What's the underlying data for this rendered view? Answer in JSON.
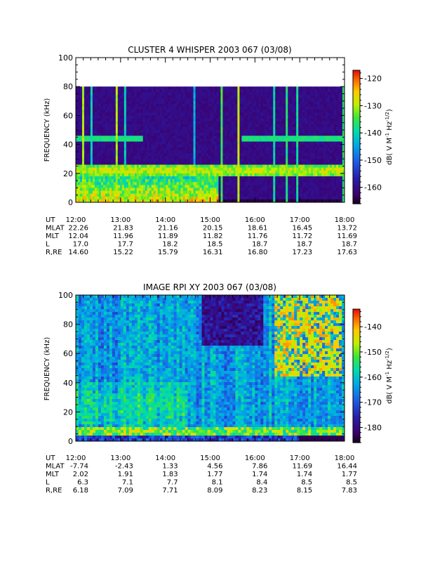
{
  "chart_data": [
    {
      "type": "heatmap",
      "title": "CLUSTER 4 WHISPER 2003 067 (03/08)",
      "ylabel": "FREQUENCY (kHz)",
      "ylim": [
        0,
        100
      ],
      "yticks": [
        "0",
        "20",
        "40",
        "60",
        "80",
        "100"
      ],
      "data_top_khz": 80,
      "xlim": [
        "12:00",
        "18:00"
      ],
      "colorbar": {
        "label": "dB( V M",
        "label_exp1": "-1",
        "label_mid": " Hz",
        "label_exp2": "-1/2",
        "label_end": ")",
        "range": [
          -166,
          -117
        ],
        "ticks": [
          "-120",
          "-130",
          "-140",
          "-150",
          "-160"
        ]
      },
      "features": {
        "background_db": -160,
        "band_22khz_db": -128,
        "band_44khz_db": -137,
        "lowfreq_region_end": "15:10",
        "vertical_spikes": [
          "12:10",
          "12:22",
          "12:55",
          "13:07",
          "14:40",
          "15:15",
          "15:38",
          "16:25",
          "16:42",
          "16:56",
          "17:58"
        ]
      },
      "orbit_rows": [
        {
          "label": "UT",
          "values": [
            "12:00",
            "13:00",
            "14:00",
            "15:00",
            "16:00",
            "17:00",
            "18:00"
          ]
        },
        {
          "label": "MLAT",
          "values": [
            "22.26",
            "21.83",
            "21.16",
            "20.15",
            "18.61",
            "16.45",
            "13.72"
          ]
        },
        {
          "label": "MLT",
          "values": [
            "12.04",
            "11.96",
            "11.89",
            "11.82",
            "11.76",
            "11.72",
            "11.69"
          ]
        },
        {
          "label": "L",
          "values": [
            "17.0",
            "17.7",
            "18.2",
            "18.5",
            "18.7",
            "18.7",
            "18.7"
          ]
        },
        {
          "label": "R,RE",
          "values": [
            "14.60",
            "15.22",
            "15.79",
            "16.31",
            "16.80",
            "17.23",
            "17.63"
          ]
        }
      ]
    },
    {
      "type": "heatmap",
      "title": "IMAGE RPI XY 2003 067 (03/08)",
      "ylabel": "FREQUENCY (kHz)",
      "ylim": [
        0,
        100
      ],
      "yticks": [
        "0",
        "20",
        "40",
        "60",
        "80",
        "100"
      ],
      "data_top_khz": 100,
      "xlim": [
        "12:00",
        "18:00"
      ],
      "colorbar": {
        "label": "dB( V M",
        "label_exp1": "-1",
        "label_mid": " Hz",
        "label_exp2": "-1/2",
        "label_end": ")",
        "range": [
          -186,
          -133
        ],
        "ticks": [
          "-140",
          "-150",
          "-160",
          "-170",
          "-180"
        ]
      },
      "features": {
        "background_db": -163,
        "dark_region": [
          "14:50",
          "16:10",
          65,
          100
        ],
        "intense_region": [
          "16:25",
          "17:55",
          45,
          100
        ]
      },
      "orbit_rows": [
        {
          "label": "UT",
          "values": [
            "12:00",
            "13:00",
            "14:00",
            "15:00",
            "16:00",
            "17:00",
            "18:00"
          ]
        },
        {
          "label": "MLAT",
          "values": [
            "-7.74",
            "-2.43",
            "1.33",
            "4.56",
            "7.86",
            "11.69",
            "16.44"
          ]
        },
        {
          "label": "MLT",
          "values": [
            "2.02",
            "1.91",
            "1.83",
            "1.77",
            "1.74",
            "1.74",
            "1.77"
          ]
        },
        {
          "label": "L",
          "values": [
            "6.3",
            "7.1",
            "7.7",
            "8.1",
            "8.4",
            "8.5",
            "8.5"
          ]
        },
        {
          "label": "R,RE",
          "values": [
            "6.18",
            "7.09",
            "7.71",
            "8.09",
            "8.23",
            "8.15",
            "7.83"
          ]
        }
      ]
    }
  ]
}
